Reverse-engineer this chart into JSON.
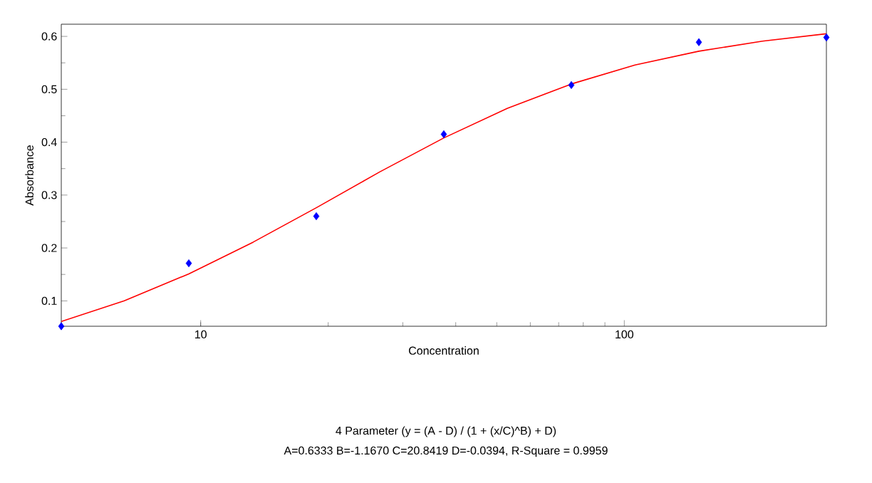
{
  "chart_data": {
    "type": "scatter",
    "xlabel": "Concentration",
    "ylabel": "Absorbance",
    "log": "x",
    "xlim": [
      4.6875,
      300
    ],
    "xticks": [
      10,
      100
    ],
    "ylim": [
      0.052,
      0.623
    ],
    "yticks": [
      0.1,
      0.2,
      0.3,
      0.4,
      0.5,
      0.6
    ],
    "grid": false,
    "marker": "diamond",
    "series": [
      {
        "color": "#0000ff",
        "x": [
          4.6875,
          9.375,
          18.75,
          37.5,
          75,
          150,
          300
        ],
        "values": [
          0.052,
          0.171,
          0.26,
          0.415,
          0.508,
          0.589,
          0.598
        ]
      },
      {
        "type": "line",
        "color": "#ff0000",
        "marker": "none",
        "line_style": "solid",
        "x": [
          4.6875,
          6.6,
          9.375,
          13.3,
          18.75,
          26.5,
          37.5,
          53,
          75,
          106,
          150,
          212,
          300
        ],
        "values": [
          0.061,
          0.1,
          0.151,
          0.211,
          0.276,
          0.344,
          0.408,
          0.464,
          0.51,
          0.546,
          0.572,
          0.591,
          0.605
        ]
      }
    ],
    "annotations": [
      "4 Parameter (y = (A - D) / (1 + (x/C)^B) + D)",
      "A=0.6333  B=-1.1670  C=20.8419  D=-0.0394, R-Square = 0.9959"
    ]
  }
}
